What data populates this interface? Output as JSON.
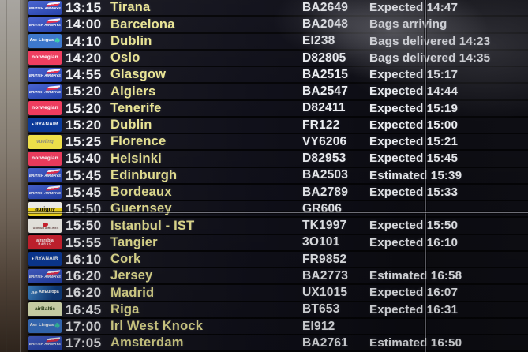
{
  "board": {
    "type": "arrivals-board",
    "text_colors": {
      "time": "#f1f2f5",
      "destination": "#e9e494",
      "flight": "#eceef2",
      "status": "#e9ebef"
    },
    "rows": [
      {
        "airline": "british-airways",
        "time": "13:15",
        "destination": "Tirana",
        "flight": "BA2649",
        "status": "Expected 14:47"
      },
      {
        "airline": "british-airways",
        "time": "14:00",
        "destination": "Barcelona",
        "flight": "BA2048",
        "status": "Bags arriving"
      },
      {
        "airline": "aer-lingus",
        "time": "14:10",
        "destination": "Dublin",
        "flight": "EI238",
        "status": "Bags delivered 14:23"
      },
      {
        "airline": "norwegian",
        "time": "14:20",
        "destination": "Oslo",
        "flight": "D82805",
        "status": "Bags delivered 14:35"
      },
      {
        "airline": "british-airways",
        "time": "14:55",
        "destination": "Glasgow",
        "flight": "BA2515",
        "status": "Expected 15:17"
      },
      {
        "airline": "british-airways",
        "time": "15:20",
        "destination": "Algiers",
        "flight": "BA2547",
        "status": "Expected 14:44"
      },
      {
        "airline": "norwegian",
        "time": "15:20",
        "destination": "Tenerife",
        "flight": "D82411",
        "status": "Expected 15:19"
      },
      {
        "airline": "ryanair",
        "time": "15:20",
        "destination": "Dublin",
        "flight": "FR122",
        "status": "Expected 15:00"
      },
      {
        "airline": "vueling",
        "time": "15:25",
        "destination": "Florence",
        "flight": "VY6206",
        "status": "Expected 15:21"
      },
      {
        "airline": "norwegian",
        "time": "15:40",
        "destination": "Helsinki",
        "flight": "D82953",
        "status": "Expected 15:45"
      },
      {
        "airline": "british-airways",
        "time": "15:45",
        "destination": "Edinburgh",
        "flight": "BA2503",
        "status": "Estimated 15:39"
      },
      {
        "airline": "british-airways",
        "time": "15:45",
        "destination": "Bordeaux",
        "flight": "BA2789",
        "status": "Expected 15:33"
      },
      {
        "airline": "aurigny",
        "time": "15:50",
        "destination": "Guernsey",
        "flight": "GR606",
        "status": ""
      },
      {
        "airline": "turkish-airlines",
        "time": "15:50",
        "destination": "Istanbul - IST",
        "flight": "TK1997",
        "status": "Expected 15:50"
      },
      {
        "airline": "air-arabia-maroc",
        "time": "15:55",
        "destination": "Tangier",
        "flight": "3O101",
        "status": "Expected 16:10"
      },
      {
        "airline": "ryanair",
        "time": "16:10",
        "destination": "Cork",
        "flight": "FR9852",
        "status": ""
      },
      {
        "airline": "british-airways",
        "time": "16:20",
        "destination": "Jersey",
        "flight": "BA2773",
        "status": "Estimated 16:58"
      },
      {
        "airline": "air-europa",
        "time": "16:20",
        "destination": "Madrid",
        "flight": "UX1015",
        "status": "Expected 16:07"
      },
      {
        "airline": "airbaltic",
        "time": "16:45",
        "destination": "Riga",
        "flight": "BT653",
        "status": "Expected 16:31"
      },
      {
        "airline": "aer-lingus",
        "time": "17:00",
        "destination": "Irl West Knock",
        "flight": "EI912",
        "status": ""
      },
      {
        "airline": "british-airways",
        "time": "17:05",
        "destination": "Amsterdam",
        "flight": "BA2761",
        "status": "Estimated 16:50"
      }
    ]
  },
  "airlines": {
    "british-airways": {
      "name": "British Airways",
      "bg": "#2b4fc2",
      "parts": [
        {
          "cls": "swoosh"
        },
        {
          "cls": "lbl",
          "text": "BRITISH AIRWAYS"
        }
      ]
    },
    "aer-lingus": {
      "name": "Aer Lingus",
      "bg": "#3b76cc",
      "parts": [
        {
          "cls": "lbl",
          "text": "Aer Lingus"
        },
        {
          "cls": "sham",
          "text": "☘"
        }
      ]
    },
    "norwegian": {
      "name": "Norwegian",
      "bg": "#ef3c5e",
      "parts": [
        {
          "cls": "lbl",
          "text": "norwegian"
        }
      ]
    },
    "ryanair": {
      "name": "Ryanair",
      "bg": "#0b3a9a",
      "parts": [
        {
          "cls": "mark",
          "text": "♦"
        },
        {
          "cls": "lbl",
          "text": "RYANAIR"
        }
      ]
    },
    "vueling": {
      "name": "Vueling",
      "bg": "#f1e24b",
      "parts": [
        {
          "cls": "lbl",
          "text": "vueling"
        }
      ]
    },
    "aurigny": {
      "name": "Aurigny",
      "bg": "#f7dc1e",
      "parts": [
        {
          "cls": "lbl",
          "text": "aurigny"
        }
      ]
    },
    "turkish-airlines": {
      "name": "Turkish Airlines",
      "bg": "#f4f2ec",
      "parts": [
        {
          "cls": "bird"
        },
        {
          "cls": "lbl",
          "text": "TURKISH AIRLINES"
        }
      ]
    },
    "air-arabia-maroc": {
      "name": "Air Arabia Maroc",
      "bg": "#d02231",
      "parts": [
        {
          "cls": "lbl",
          "text": "airarabia"
        },
        {
          "cls": "l2",
          "text": "maroc"
        }
      ]
    },
    "air-europa": {
      "name": "Air Europa",
      "bg": "#1a5aa8",
      "parts": [
        {
          "cls": "mark",
          "text": "ae"
        },
        {
          "cls": "lbl",
          "text": "AirEuropa"
        }
      ]
    },
    "airbaltic": {
      "name": "airBaltic",
      "bg": "#e6edbd",
      "parts": [
        {
          "cls": "lbl",
          "text": "airBaltic"
        }
      ]
    }
  }
}
